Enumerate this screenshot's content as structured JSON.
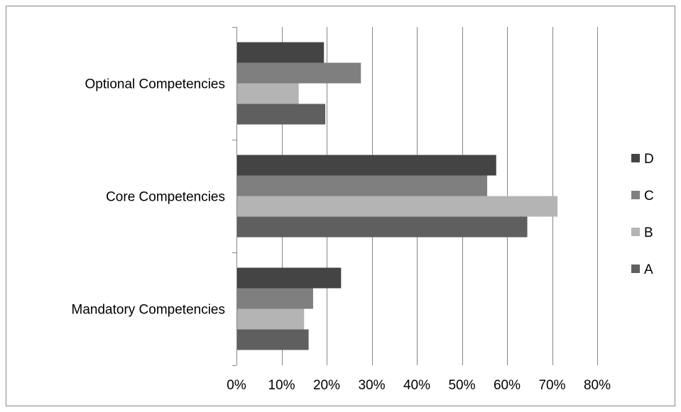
{
  "chart_data": {
    "type": "bar",
    "orientation": "horizontal",
    "categories": [
      "Mandatory Competencies",
      "Core Competencies",
      "Optional Competencies"
    ],
    "series": [
      {
        "name": "A",
        "color": "#5f5f5f",
        "values": [
          0.16,
          0.645,
          0.197
        ]
      },
      {
        "name": "B",
        "color": "#b4b4b4",
        "values": [
          0.15,
          0.712,
          0.138
        ]
      },
      {
        "name": "C",
        "color": "#7f7f7f",
        "values": [
          0.17,
          0.556,
          0.276
        ]
      },
      {
        "name": "D",
        "color": "#444444",
        "values": [
          0.232,
          0.576,
          0.194
        ]
      }
    ],
    "xlim": [
      0,
      0.8
    ],
    "x_ticks": [
      0,
      0.1,
      0.2,
      0.3,
      0.4,
      0.5,
      0.6,
      0.7,
      0.8
    ],
    "x_tick_labels": [
      "0%",
      "10%",
      "20%",
      "30%",
      "40%",
      "50%",
      "60%",
      "70%",
      "80%"
    ],
    "grid": true,
    "legend_position": "right",
    "legend_order": [
      "D",
      "C",
      "B",
      "A"
    ],
    "title": "",
    "xlabel": "",
    "ylabel": ""
  }
}
